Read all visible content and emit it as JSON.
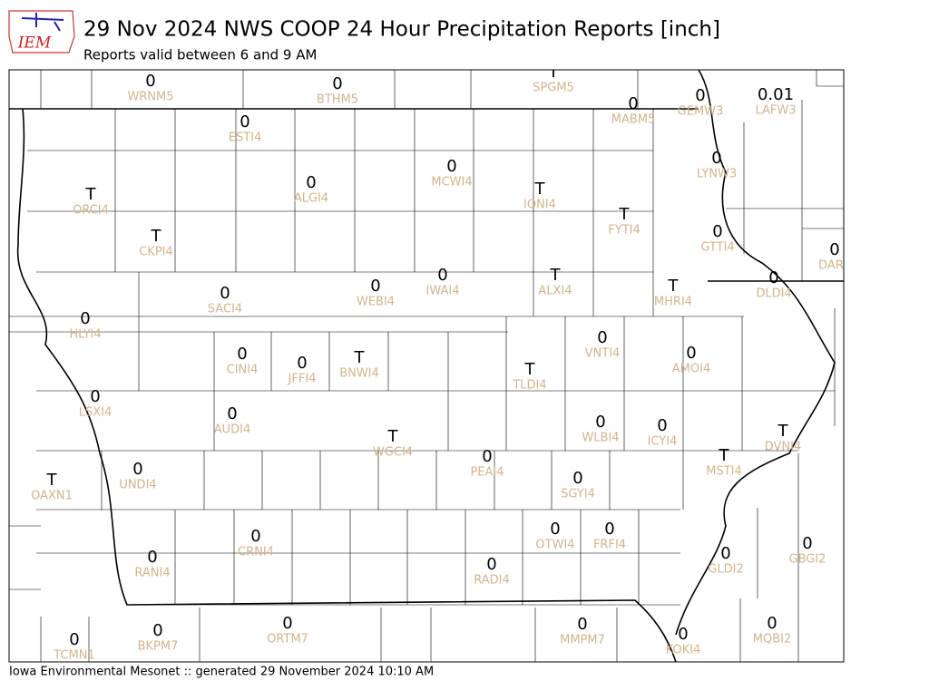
{
  "header": {
    "title": "29 Nov 2024 NWS COOP 24 Hour Precipitation Reports [inch]",
    "subtitle": "Reports valid between 6 and 9 AM",
    "logo": "IEM"
  },
  "stations": [
    {
      "id": "WRNM5",
      "value": "0"
    },
    {
      "id": "BTHM5",
      "value": "0"
    },
    {
      "id": "SPGM5",
      "value": "T"
    },
    {
      "id": "MABM5",
      "value": "0"
    },
    {
      "id": "GEMW3",
      "value": "0"
    },
    {
      "id": "LAFW3",
      "value": "0.01"
    },
    {
      "id": "ESTI4",
      "value": "0"
    },
    {
      "id": "ALGI4",
      "value": "0"
    },
    {
      "id": "MCWI4",
      "value": "0"
    },
    {
      "id": "IONI4",
      "value": "T"
    },
    {
      "id": "ORCI4",
      "value": "T"
    },
    {
      "id": "FYTI4",
      "value": "T"
    },
    {
      "id": "LYNW3",
      "value": "0"
    },
    {
      "id": "CKPI4",
      "value": "T"
    },
    {
      "id": "GTTI4",
      "value": "0"
    },
    {
      "id": "DAR",
      "value": "0"
    },
    {
      "id": "SACI4",
      "value": "0"
    },
    {
      "id": "WEBI4",
      "value": "0"
    },
    {
      "id": "IWAI4",
      "value": "0"
    },
    {
      "id": "ALXI4",
      "value": "T"
    },
    {
      "id": "MHRI4",
      "value": "T"
    },
    {
      "id": "DLDI4",
      "value": "0"
    },
    {
      "id": "HLYI4",
      "value": "0"
    },
    {
      "id": "CINI4",
      "value": "0"
    },
    {
      "id": "JFFI4",
      "value": "0"
    },
    {
      "id": "BNWI4",
      "value": "T"
    },
    {
      "id": "VNTI4",
      "value": "0"
    },
    {
      "id": "AMOI4",
      "value": "0"
    },
    {
      "id": "TLDI4",
      "value": "T"
    },
    {
      "id": "LSXI4",
      "value": "0"
    },
    {
      "id": "AUDI4",
      "value": "0"
    },
    {
      "id": "WLBI4",
      "value": "0"
    },
    {
      "id": "ICYI4",
      "value": "0"
    },
    {
      "id": "WGCI4",
      "value": "T"
    },
    {
      "id": "DVNI4",
      "value": "T"
    },
    {
      "id": "MSTI4",
      "value": "T"
    },
    {
      "id": "PEAI4",
      "value": "0"
    },
    {
      "id": "UNDI4",
      "value": "0"
    },
    {
      "id": "OAXN1",
      "value": "T"
    },
    {
      "id": "SGYI4",
      "value": "0"
    },
    {
      "id": "CRNI4",
      "value": "0"
    },
    {
      "id": "OTWI4",
      "value": "0"
    },
    {
      "id": "FRFI4",
      "value": "0"
    },
    {
      "id": "GBGI2",
      "value": "0"
    },
    {
      "id": "GLDI2",
      "value": "0"
    },
    {
      "id": "RANI4",
      "value": "0"
    },
    {
      "id": "RADI4",
      "value": "0"
    },
    {
      "id": "ORTM7",
      "value": "0"
    },
    {
      "id": "MMPM7",
      "value": "0"
    },
    {
      "id": "MQBI2",
      "value": "0"
    },
    {
      "id": "BKPM7",
      "value": "0"
    },
    {
      "id": "TCMN1",
      "value": "0"
    },
    {
      "id": "KOKI4",
      "value": "0"
    }
  ],
  "footer": "Iowa Environmental Mesonet :: generated 29 November 2024 10:10 AM"
}
